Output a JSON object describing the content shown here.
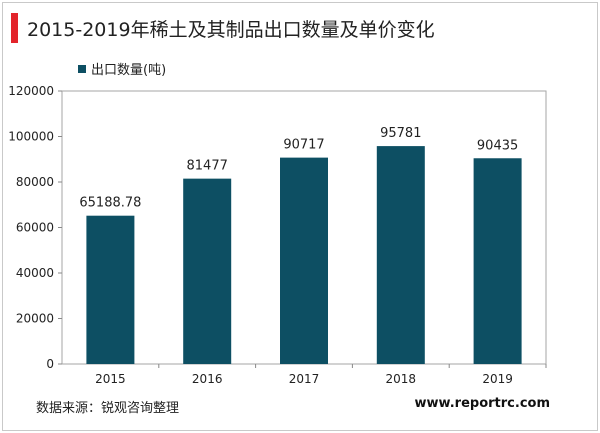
{
  "title": "2015-2019年稀土及其制品出口数量及单价变化",
  "colors": {
    "bar": "#0d4f63",
    "accent": "#e3242b",
    "axis": "#888888"
  },
  "chart_data": {
    "type": "bar",
    "categories": [
      "2015",
      "2016",
      "2017",
      "2018",
      "2019"
    ],
    "series": [
      {
        "name": "出口数量(吨)",
        "values": [
          65188.78,
          81477,
          90717,
          95781,
          90435
        ]
      }
    ],
    "data_labels": [
      "65188.78",
      "81477",
      "90717",
      "95781",
      "90435"
    ],
    "ylim": [
      0,
      120000
    ],
    "yticks": [
      0,
      20000,
      40000,
      60000,
      80000,
      100000,
      120000
    ],
    "grid": false,
    "legend": "top-left"
  },
  "footer": {
    "source": "数据来源：锐观咨询整理",
    "site": "www.reportrc.com"
  }
}
